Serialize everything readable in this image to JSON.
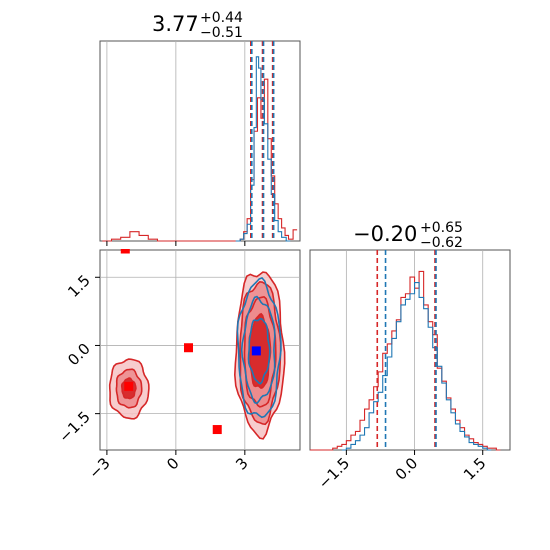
{
  "colors": {
    "red": "#d62728",
    "blue": "#1f77b4",
    "red_fill": "#ec8a8c",
    "red_fill_light": "#f6c3c4",
    "marker_red": "#ff0000",
    "marker_blue": "#0000ff",
    "grid": "#b0b0b0"
  },
  "chart_data": [
    {
      "type": "histogram",
      "panel": "x-marginal",
      "title": {
        "value": "3.77",
        "sup": "+0.44",
        "sub": "−0.51"
      },
      "xlim": [
        -3.3,
        5.4
      ],
      "x_ticks": [
        -3,
        0,
        3
      ],
      "quantiles_red": [
        3.26,
        3.77,
        4.21
      ],
      "quantiles_blue": [
        3.26,
        3.77,
        4.21
      ],
      "series": [
        {
          "name": "",
          "color": "red",
          "bins": [
            [
              -3.2,
              0.0
            ],
            [
              -2.8,
              0.01
            ],
            [
              -2.4,
              0.02
            ],
            [
              -2.0,
              0.05
            ],
            [
              -1.6,
              0.03
            ],
            [
              -1.2,
              0.01
            ],
            [
              -0.8,
              0.0
            ],
            [
              2.6,
              0.0
            ],
            [
              2.8,
              0.01
            ],
            [
              2.95,
              0.05
            ],
            [
              3.1,
              0.12
            ],
            [
              3.25,
              0.33
            ],
            [
              3.4,
              0.59
            ],
            [
              3.55,
              0.77
            ],
            [
              3.7,
              0.66
            ],
            [
              3.85,
              0.87
            ],
            [
              4.0,
              0.55
            ],
            [
              4.15,
              0.35
            ],
            [
              4.3,
              0.2
            ],
            [
              4.45,
              0.12
            ],
            [
              4.6,
              0.07
            ],
            [
              4.75,
              0.03
            ],
            [
              4.9,
              0.01
            ],
            [
              5.1,
              0.06
            ]
          ]
        },
        {
          "name": "",
          "color": "blue",
          "bins": [
            [
              2.6,
              0.0
            ],
            [
              2.8,
              0.01
            ],
            [
              2.95,
              0.04
            ],
            [
              3.1,
              0.09
            ],
            [
              3.25,
              0.3
            ],
            [
              3.4,
              0.61
            ],
            [
              3.5,
              0.99
            ],
            [
              3.6,
              0.93
            ],
            [
              3.7,
              0.76
            ],
            [
              3.85,
              0.63
            ],
            [
              4.0,
              0.44
            ],
            [
              4.15,
              0.25
            ],
            [
              4.3,
              0.11
            ],
            [
              4.45,
              0.05
            ],
            [
              4.6,
              0.02
            ],
            [
              4.8,
              0.0
            ]
          ]
        }
      ]
    },
    {
      "type": "histogram",
      "panel": "y-marginal",
      "title": {
        "value": "−0.20",
        "sup": "+0.65",
        "sub": "−0.62"
      },
      "xlim": [
        -2.3,
        2.1
      ],
      "x_ticks": [
        -1.5,
        0.0,
        1.5
      ],
      "x_tick_labels": [
        "−1.5",
        "0.0",
        "1.5"
      ],
      "quantiles_red": [
        -0.82,
        0.45
      ],
      "quantiles_blue": [
        -0.66,
        0.45
      ],
      "series": [
        {
          "name": "",
          "color": "red",
          "bins": [
            [
              -2.3,
              0.0
            ],
            [
              -1.9,
              0.0
            ],
            [
              -1.8,
              0.01
            ],
            [
              -1.7,
              0.02
            ],
            [
              -1.6,
              0.03
            ],
            [
              -1.5,
              0.05
            ],
            [
              -1.4,
              0.08
            ],
            [
              -1.3,
              0.1
            ],
            [
              -1.2,
              0.16
            ],
            [
              -1.1,
              0.22
            ],
            [
              -1.0,
              0.27
            ],
            [
              -0.9,
              0.34
            ],
            [
              -0.8,
              0.42
            ],
            [
              -0.7,
              0.52
            ],
            [
              -0.6,
              0.57
            ],
            [
              -0.5,
              0.64
            ],
            [
              -0.4,
              0.7
            ],
            [
              -0.3,
              0.82
            ],
            [
              -0.2,
              0.84
            ],
            [
              -0.1,
              0.93
            ],
            [
              0.0,
              0.87
            ],
            [
              0.1,
              0.96
            ],
            [
              0.2,
              0.78
            ],
            [
              0.3,
              0.69
            ],
            [
              0.4,
              0.62
            ],
            [
              0.5,
              0.44
            ],
            [
              0.6,
              0.37
            ],
            [
              0.7,
              0.28
            ],
            [
              0.8,
              0.22
            ],
            [
              0.9,
              0.16
            ],
            [
              1.0,
              0.12
            ],
            [
              1.1,
              0.08
            ],
            [
              1.2,
              0.06
            ],
            [
              1.3,
              0.04
            ],
            [
              1.4,
              0.03
            ],
            [
              1.5,
              0.02
            ],
            [
              1.6,
              0.01
            ],
            [
              1.8,
              0.0
            ]
          ]
        },
        {
          "name": "",
          "color": "blue",
          "bins": [
            [
              -1.6,
              0.0
            ],
            [
              -1.5,
              0.01
            ],
            [
              -1.4,
              0.03
            ],
            [
              -1.3,
              0.05
            ],
            [
              -1.2,
              0.08
            ],
            [
              -1.1,
              0.12
            ],
            [
              -1.0,
              0.2
            ],
            [
              -0.9,
              0.26
            ],
            [
              -0.8,
              0.31
            ],
            [
              -0.7,
              0.4
            ],
            [
              -0.6,
              0.5
            ],
            [
              -0.5,
              0.6
            ],
            [
              -0.4,
              0.69
            ],
            [
              -0.3,
              0.78
            ],
            [
              -0.2,
              0.81
            ],
            [
              -0.1,
              0.84
            ],
            [
              0.0,
              0.9
            ],
            [
              0.1,
              0.82
            ],
            [
              0.2,
              0.76
            ],
            [
              0.3,
              0.66
            ],
            [
              0.4,
              0.55
            ],
            [
              0.5,
              0.45
            ],
            [
              0.6,
              0.36
            ],
            [
              0.7,
              0.27
            ],
            [
              0.8,
              0.2
            ],
            [
              0.9,
              0.14
            ],
            [
              1.0,
              0.1
            ],
            [
              1.1,
              0.07
            ],
            [
              1.2,
              0.04
            ],
            [
              1.3,
              0.03
            ],
            [
              1.4,
              0.02
            ],
            [
              1.5,
              0.01
            ],
            [
              1.6,
              0.0
            ]
          ]
        }
      ]
    },
    {
      "type": "scatter",
      "panel": "joint",
      "xlim": [
        -3.3,
        5.4
      ],
      "ylim": [
        -2.3,
        2.1
      ],
      "x_ticks": [
        -3,
        0,
        3
      ],
      "y_ticks": [
        -1.5,
        0.0,
        1.5
      ],
      "y_tick_labels": [
        "−1.5",
        "0.0",
        "1.5"
      ],
      "markers": [
        {
          "color": "marker_red",
          "x": -2.05,
          "y": -0.9
        },
        {
          "color": "marker_red",
          "x": 0.55,
          "y": -0.05
        },
        {
          "color": "marker_red",
          "x": 1.8,
          "y": -1.85
        },
        {
          "color": "marker_red",
          "x": -2.2,
          "y": 2.1
        },
        {
          "color": "marker_blue",
          "x": 3.5,
          "y": -0.12
        }
      ],
      "red_contours": [
        {
          "cx": 3.65,
          "cy": -0.15,
          "levels": [
            [
              1.05,
              1.8
            ],
            [
              0.88,
              1.55
            ],
            [
              0.68,
              1.2
            ],
            [
              0.45,
              0.8
            ]
          ]
        },
        {
          "cx": -2.05,
          "cy": -0.95,
          "levels": [
            [
              0.85,
              0.65
            ],
            [
              0.55,
              0.42
            ],
            [
              0.3,
              0.22
            ]
          ]
        }
      ],
      "blue_contours": [
        {
          "cx": 3.62,
          "cy": -0.1,
          "levels": [
            [
              0.92,
              1.5
            ],
            [
              0.7,
              1.12
            ],
            [
              0.45,
              0.7
            ]
          ]
        }
      ]
    }
  ]
}
